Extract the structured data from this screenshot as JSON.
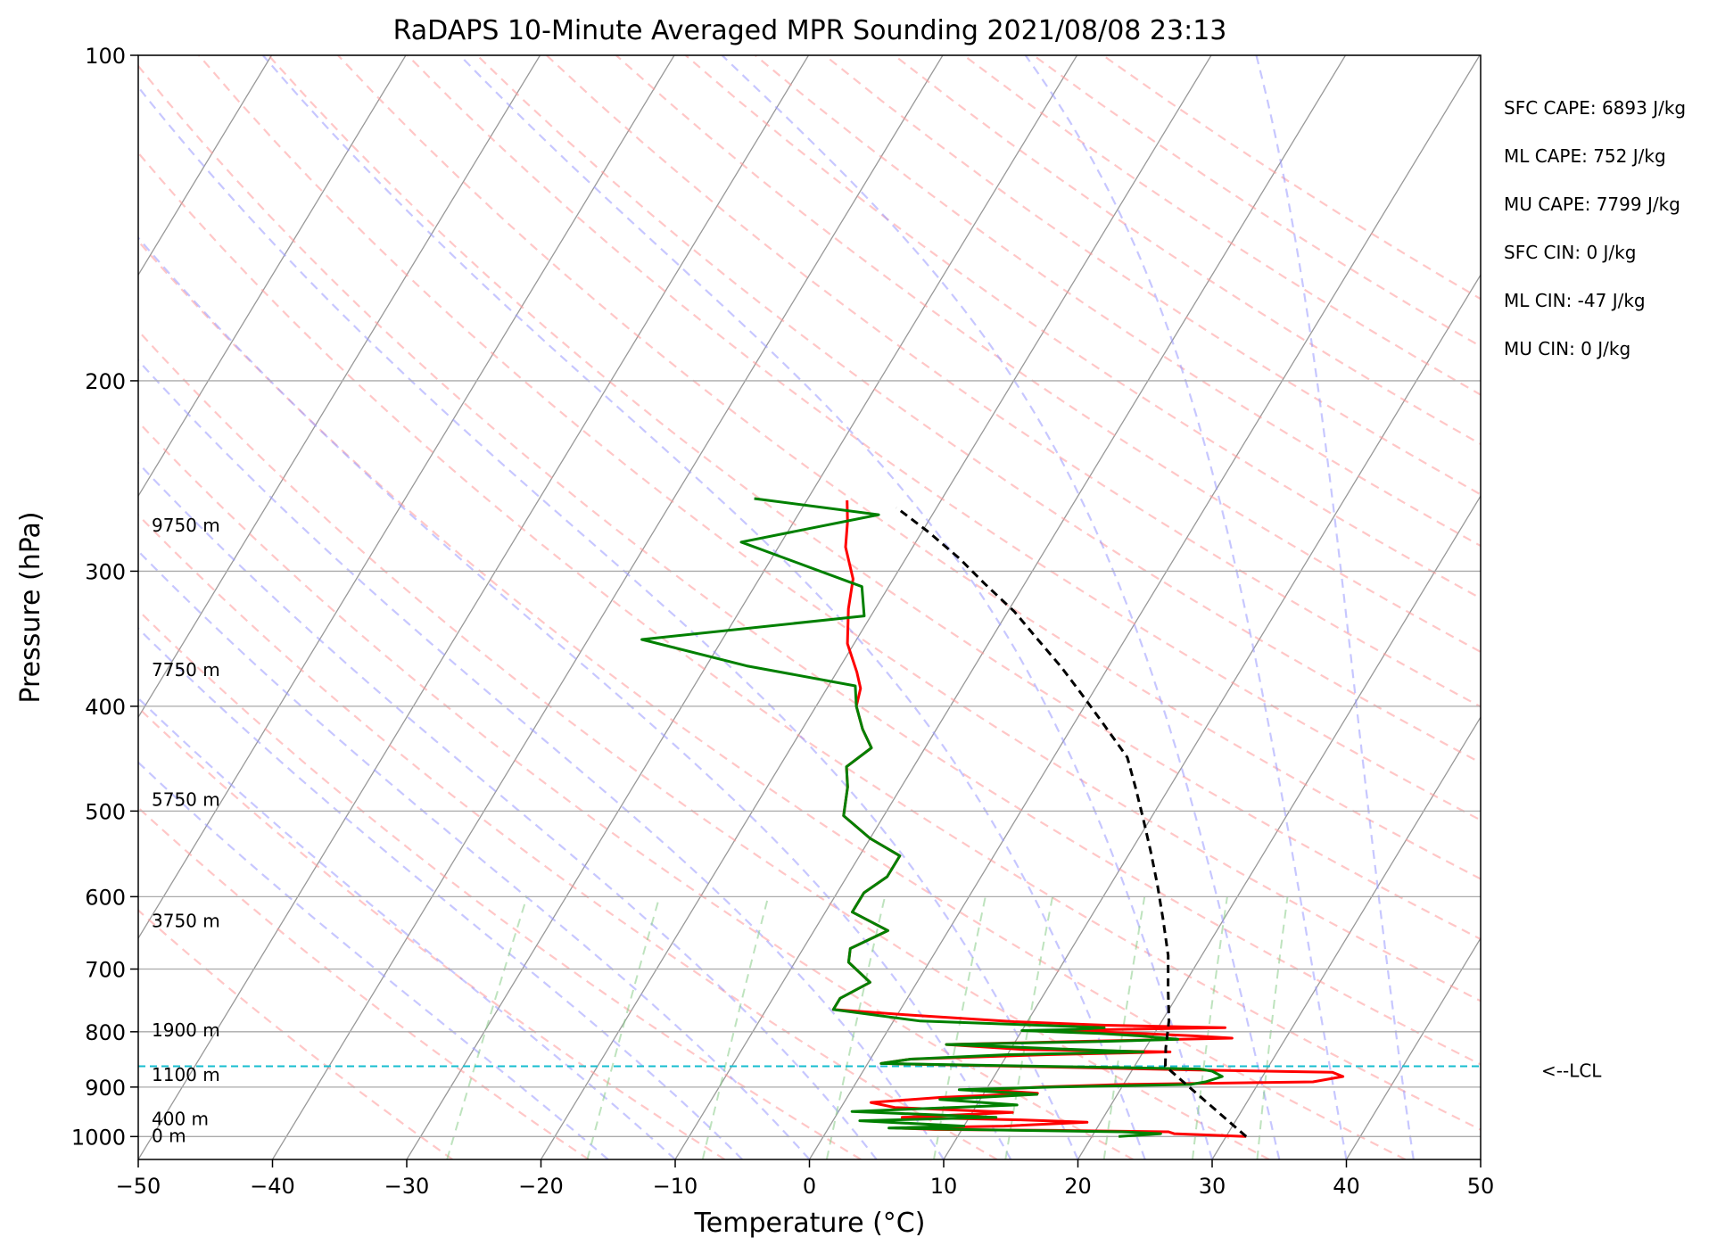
{
  "chart_data": {
    "type": "line",
    "title": "RaDAPS 10-Minute Averaged MPR Sounding 2021/08/08 23:13",
    "xlabel": "Temperature (°C)",
    "ylabel": "Pressure (hPa)",
    "xlim": [
      -50,
      50
    ],
    "ylim": [
      1050,
      100
    ],
    "y_scale": "log",
    "x_ticks": [
      "−50",
      "−40",
      "−30",
      "−20",
      "−10",
      "0",
      "10",
      "20",
      "30",
      "40",
      "50"
    ],
    "y_ticks": [
      "100",
      "200",
      "300",
      "400",
      "500",
      "600",
      "700",
      "800",
      "900",
      "1000"
    ],
    "grid": true,
    "height_labels": [
      {
        "p": 272,
        "label": "9750 m"
      },
      {
        "p": 370,
        "label": "7750 m"
      },
      {
        "p": 488,
        "label": "5750 m"
      },
      {
        "p": 632,
        "label": "3750 m"
      },
      {
        "p": 797,
        "label": "1900 m"
      },
      {
        "p": 877,
        "label": "1100 m"
      },
      {
        "p": 963,
        "label": "400 m"
      },
      {
        "p": 998,
        "label": "0 m"
      }
    ],
    "lcl": {
      "p": 861,
      "label": "<--LCL"
    },
    "annotations": [
      "SFC CAPE: 6893 J/kg",
      "ML CAPE: 752 J/kg",
      "MU CAPE: 7799 J/kg",
      "SFC CIN: 0 J/kg",
      "ML CIN: -47 J/kg",
      "MU CIN: 0 J/kg"
    ],
    "colors": {
      "temperature": "#ff0000",
      "dewpoint": "#008000",
      "parcel": "#000000",
      "lcl": "#17becf",
      "dry_adiabat": "#ff9999",
      "moist_adiabat": "#9999ff",
      "mixing_ratio": "#88cc88",
      "isotherm": "#999999"
    },
    "series": [
      {
        "key": "temperature",
        "points": [
          [
            31.5,
            1000
          ],
          [
            26,
            994
          ],
          [
            25.5,
            990
          ],
          [
            20,
            988
          ],
          [
            17,
            987
          ],
          [
            8,
            985
          ],
          [
            5,
            982
          ],
          [
            13,
            978
          ],
          [
            19,
            970
          ],
          [
            14,
            965
          ],
          [
            5,
            960
          ],
          [
            13,
            950
          ],
          [
            4,
            940
          ],
          [
            2,
            930
          ],
          [
            7,
            920
          ],
          [
            14,
            912
          ],
          [
            10,
            905
          ],
          [
            14,
            900
          ],
          [
            20,
            895
          ],
          [
            34,
            890
          ],
          [
            36,
            880
          ],
          [
            35,
            872
          ],
          [
            25,
            868
          ],
          [
            1,
            856
          ],
          [
            3,
            848
          ],
          [
            13,
            840
          ],
          [
            22,
            835
          ],
          [
            11,
            831
          ],
          [
            5,
            822
          ],
          [
            14,
            817
          ],
          [
            26,
            811
          ],
          [
            23,
            807
          ],
          [
            19,
            803
          ],
          [
            13,
            798
          ],
          [
            17,
            796
          ],
          [
            25,
            793
          ],
          [
            16,
            789
          ],
          [
            9,
            783
          ],
          [
            1,
            772
          ],
          [
            -5,
            763
          ],
          [
            -5,
            745
          ],
          [
            -3.5,
            720
          ],
          [
            -6,
            690
          ],
          [
            -6.5,
            670
          ],
          [
            -4.5,
            645
          ],
          [
            -8,
            620
          ],
          [
            -8,
            595
          ],
          [
            -7,
            575
          ],
          [
            -7,
            550
          ],
          [
            -10,
            530
          ],
          [
            -13,
            505
          ],
          [
            -14,
            475
          ],
          [
            -15,
            455
          ],
          [
            -14,
            437
          ],
          [
            -15.5,
            420
          ],
          [
            -17,
            400
          ],
          [
            -17.5,
            385
          ],
          [
            -18.5,
            372
          ],
          [
            -20.5,
            350
          ],
          [
            -22,
            325
          ],
          [
            -23,
            305
          ],
          [
            -25,
            285
          ],
          [
            -26,
            270
          ],
          [
            -27,
            258
          ]
        ]
      },
      {
        "key": "dewpoint",
        "points": [
          [
            22,
            1000
          ],
          [
            25,
            994
          ],
          [
            22,
            990
          ],
          [
            10,
            985
          ],
          [
            4.5,
            982
          ],
          [
            10,
            978
          ],
          [
            2,
            967
          ],
          [
            12,
            960
          ],
          [
            1,
            948
          ],
          [
            13,
            935
          ],
          [
            7,
            924
          ],
          [
            14,
            914
          ],
          [
            8,
            905
          ],
          [
            15,
            900
          ],
          [
            25,
            895
          ],
          [
            26,
            890
          ],
          [
            27,
            880
          ],
          [
            26,
            870
          ],
          [
            25,
            866
          ],
          [
            1,
            856
          ],
          [
            3,
            848
          ],
          [
            10,
            840
          ],
          [
            20,
            835
          ],
          [
            14,
            830
          ],
          [
            5,
            822
          ],
          [
            16,
            817
          ],
          [
            22,
            813
          ],
          [
            19,
            807
          ],
          [
            16,
            803
          ],
          [
            10,
            798
          ],
          [
            14,
            796
          ],
          [
            16,
            793
          ],
          [
            11,
            789
          ],
          [
            2,
            782
          ],
          [
            -5,
            763
          ],
          [
            -5,
            745
          ],
          [
            -3.5,
            720
          ],
          [
            -6,
            690
          ],
          [
            -6.5,
            670
          ],
          [
            -4.5,
            645
          ],
          [
            -8,
            620
          ],
          [
            -8,
            595
          ],
          [
            -7,
            575
          ],
          [
            -7,
            550
          ],
          [
            -10,
            530
          ],
          [
            -13,
            505
          ],
          [
            -14,
            475
          ],
          [
            -15,
            455
          ],
          [
            -14,
            437
          ],
          [
            -15.5,
            420
          ],
          [
            -17,
            400
          ],
          [
            -18,
            383
          ],
          [
            -27,
            367
          ],
          [
            -36,
            347
          ],
          [
            -20.5,
            330
          ],
          [
            -22,
            310
          ],
          [
            -33,
            282
          ],
          [
            -24,
            266
          ],
          [
            -34,
            257
          ]
        ]
      },
      {
        "key": "parcel",
        "points": [
          [
            31.5,
            1000
          ],
          [
            22.3,
            861
          ],
          [
            21.5,
            828
          ],
          [
            20.5,
            781
          ],
          [
            19,
            730
          ],
          [
            17.5,
            680
          ],
          [
            15.5,
            630
          ],
          [
            13.5,
            585
          ],
          [
            11.5,
            545
          ],
          [
            9.5,
            509
          ],
          [
            7.5,
            476
          ],
          [
            5.5,
            446
          ],
          [
            2.5,
            418
          ],
          [
            -0.5,
            392
          ],
          [
            -3.5,
            368
          ],
          [
            -6.5,
            347
          ],
          [
            -9.5,
            327
          ],
          [
            -13,
            308
          ],
          [
            -16,
            292
          ],
          [
            -19.5,
            276
          ],
          [
            -23,
            262
          ]
        ]
      }
    ]
  }
}
